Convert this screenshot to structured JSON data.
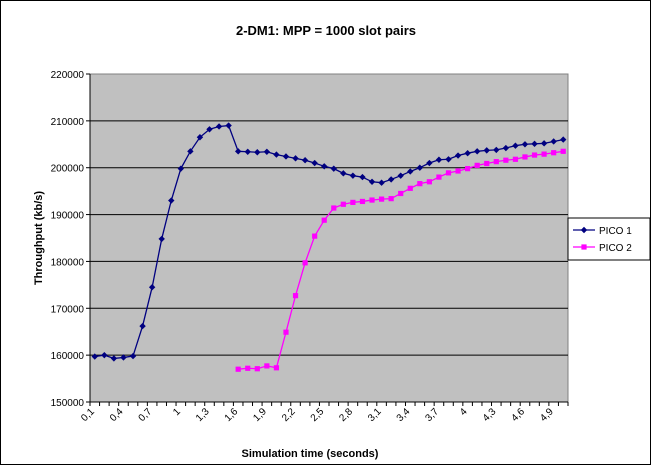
{
  "chart_data": {
    "type": "line",
    "title": "2-DM1: MPP = 1000 slot pairs",
    "xlabel": "Simulation time (seconds)",
    "ylabel": "Throughput (kb/s)",
    "ylim": [
      150000,
      220000
    ],
    "yticks": [
      150000,
      160000,
      170000,
      180000,
      190000,
      200000,
      210000,
      220000
    ],
    "ytick_labels": [
      "150000",
      "160000",
      "170000",
      "180000",
      "190000",
      "200000",
      "210000",
      "220000"
    ],
    "x": [
      0.1,
      0.2,
      0.3,
      0.4,
      0.5,
      0.6,
      0.7,
      0.8,
      0.9,
      1.0,
      1.1,
      1.2,
      1.3,
      1.4,
      1.5,
      1.6,
      1.7,
      1.8,
      1.9,
      2.0,
      2.1,
      2.2,
      2.3,
      2.4,
      2.5,
      2.6,
      2.7,
      2.8,
      2.9,
      3.0,
      3.1,
      3.2,
      3.3,
      3.4,
      3.5,
      3.6,
      3.7,
      3.8,
      3.9,
      4.0,
      4.1,
      4.2,
      4.3,
      4.4,
      4.5,
      4.6,
      4.7,
      4.8,
      4.9,
      5.0
    ],
    "xtick_labels": [
      "0,1",
      "0,4",
      "0,7",
      "1",
      "1,3",
      "1,6",
      "1,9",
      "2,2",
      "2,5",
      "2,8",
      "3,1",
      "3,4",
      "3,7",
      "4",
      "4,3",
      "4,6",
      "4,9"
    ],
    "grid": true,
    "legend_position": "right",
    "plot_background": "#c0c0c0",
    "series": [
      {
        "name": "PICO 1",
        "color": "#000080",
        "marker": "diamond",
        "values": [
          159700,
          160000,
          159300,
          159500,
          159800,
          166200,
          174500,
          184800,
          193000,
          199800,
          203500,
          206500,
          208200,
          208800,
          209000,
          203500,
          203400,
          203300,
          203400,
          202800,
          202400,
          202000,
          201600,
          201000,
          200300,
          199800,
          198800,
          198300,
          198000,
          197000,
          196800,
          197500,
          198300,
          199200,
          200000,
          201000,
          201700,
          201800,
          202600,
          203100,
          203500,
          203700,
          203800,
          204200,
          204700,
          205000,
          205100,
          205200,
          205600,
          206000
        ]
      },
      {
        "name": "PICO 2",
        "color": "#ff00ff",
        "marker": "square",
        "values": [
          null,
          null,
          null,
          null,
          null,
          null,
          null,
          null,
          null,
          null,
          null,
          null,
          null,
          null,
          null,
          157000,
          157200,
          157100,
          157700,
          157300,
          164900,
          172700,
          179700,
          185400,
          188800,
          191400,
          192200,
          192600,
          192800,
          193100,
          193300,
          193400,
          194500,
          195600,
          196600,
          197000,
          198000,
          198900,
          199300,
          199800,
          200500,
          200900,
          201300,
          201600,
          201800,
          202300,
          202700,
          202900,
          203200,
          203500
        ]
      }
    ]
  }
}
